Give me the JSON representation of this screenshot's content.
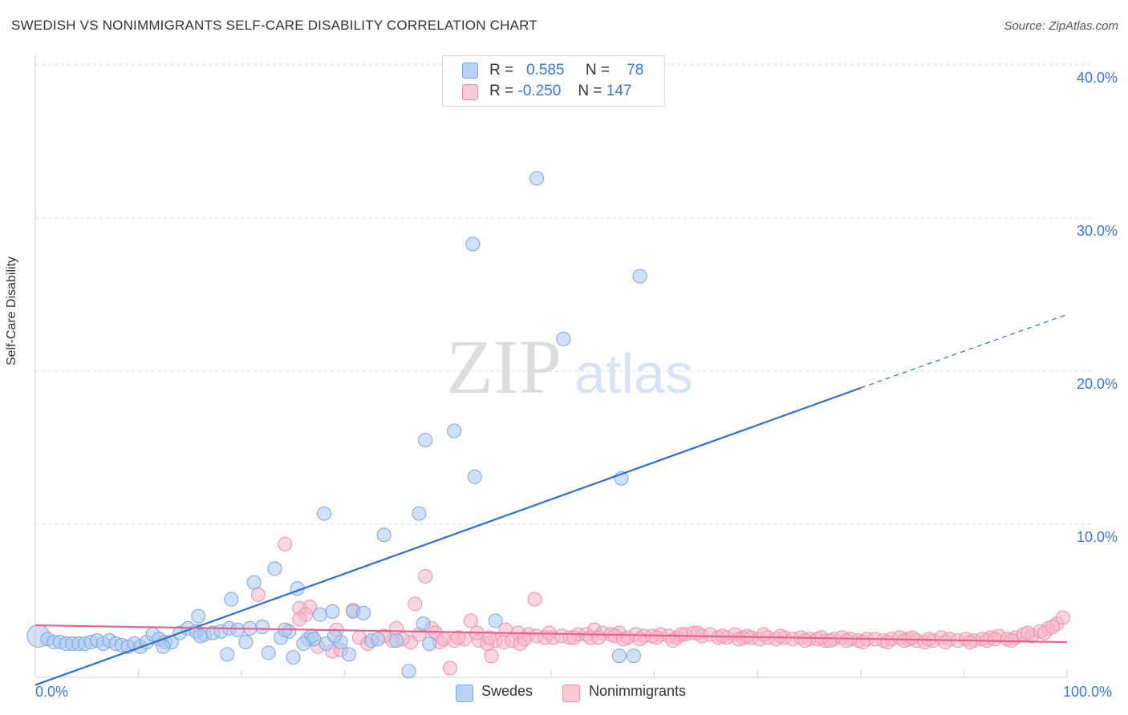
{
  "title": "SWEDISH VS NONIMMIGRANTS SELF-CARE DISABILITY CORRELATION CHART",
  "source": "Source: ZipAtlas.com",
  "watermark": {
    "zip": "ZIP",
    "atlas": "atlas"
  },
  "legend": {
    "r_label": "R =",
    "n_label": "N =",
    "rows": [
      {
        "name": "Swedes",
        "r": "0.585",
        "n": "78"
      },
      {
        "name": "Nonimmigrants",
        "r": "-0.250",
        "n": "147"
      }
    ]
  },
  "colors": {
    "swedes_fill": "#a9c8f0",
    "swedes_stroke": "#7aa6dc",
    "swedes_line": "#2f6fd0",
    "nonimm_fill": "#f5b5c8",
    "nonimm_stroke": "#ee8fab",
    "nonimm_line": "#e8608a",
    "tick_text": "#3b78d0"
  },
  "chart_data": {
    "type": "scatter",
    "title": "SWEDISH VS NONIMMIGRANTS SELF-CARE DISABILITY CORRELATION CHART",
    "xlabel": "",
    "ylabel": "Self-Care Disability",
    "xlim": [
      0,
      100
    ],
    "ylim": [
      0,
      42
    ],
    "x_tick_labels": [
      "0.0%",
      "100.0%"
    ],
    "y_ticks": [
      10,
      20,
      30,
      40
    ],
    "y_tick_labels": [
      "10.0%",
      "20.0%",
      "30.0%",
      "40.0%"
    ],
    "grid": true,
    "legend_position": "top-center",
    "series": [
      {
        "name": "Swedes",
        "r": 0.585,
        "n": 78,
        "trend": {
          "x0": 0,
          "y0": -0.5,
          "x1": 80,
          "y1": 18.9,
          "dashed_to_x": 100,
          "dashed_to_y": 23.7
        },
        "points": [
          {
            "x": 0.3,
            "y": 2.7,
            "big": true
          },
          {
            "x": 1.2,
            "y": 2.5
          },
          {
            "x": 1.8,
            "y": 2.3
          },
          {
            "x": 2.4,
            "y": 2.3
          },
          {
            "x": 3.0,
            "y": 2.2
          },
          {
            "x": 3.6,
            "y": 2.2
          },
          {
            "x": 4.2,
            "y": 2.2
          },
          {
            "x": 4.8,
            "y": 2.2
          },
          {
            "x": 5.4,
            "y": 2.3
          },
          {
            "x": 6.0,
            "y": 2.4
          },
          {
            "x": 6.6,
            "y": 2.2
          },
          {
            "x": 7.2,
            "y": 2.4
          },
          {
            "x": 7.8,
            "y": 2.2
          },
          {
            "x": 8.4,
            "y": 2.1
          },
          {
            "x": 9.0,
            "y": 2.0
          },
          {
            "x": 9.6,
            "y": 2.2
          },
          {
            "x": 10.2,
            "y": 2.0
          },
          {
            "x": 10.8,
            "y": 2.3
          },
          {
            "x": 11.4,
            "y": 2.8
          },
          {
            "x": 12.0,
            "y": 2.5
          },
          {
            "x": 12.6,
            "y": 2.3
          },
          {
            "x": 13.2,
            "y": 2.3
          },
          {
            "x": 14.0,
            "y": 2.9
          },
          {
            "x": 14.8,
            "y": 3.2
          },
          {
            "x": 15.6,
            "y": 3.0
          },
          {
            "x": 16.4,
            "y": 2.8
          },
          {
            "x": 17.2,
            "y": 2.9
          },
          {
            "x": 18.0,
            "y": 3.0
          },
          {
            "x": 18.8,
            "y": 3.2
          },
          {
            "x": 19.6,
            "y": 3.1
          },
          {
            "x": 15.8,
            "y": 4.0
          },
          {
            "x": 18.6,
            "y": 1.5
          },
          {
            "x": 19.0,
            "y": 5.1
          },
          {
            "x": 20.4,
            "y": 2.3
          },
          {
            "x": 21.2,
            "y": 6.2
          },
          {
            "x": 22.0,
            "y": 3.3
          },
          {
            "x": 22.6,
            "y": 1.6
          },
          {
            "x": 23.2,
            "y": 7.1
          },
          {
            "x": 23.8,
            "y": 2.6
          },
          {
            "x": 24.6,
            "y": 3.0
          },
          {
            "x": 25.0,
            "y": 1.3
          },
          {
            "x": 25.4,
            "y": 5.8
          },
          {
            "x": 26.4,
            "y": 2.5
          },
          {
            "x": 26.8,
            "y": 2.7
          },
          {
            "x": 27.6,
            "y": 4.1
          },
          {
            "x": 28.2,
            "y": 2.2
          },
          {
            "x": 28.8,
            "y": 4.3
          },
          {
            "x": 29.6,
            "y": 2.3
          },
          {
            "x": 30.4,
            "y": 1.5
          },
          {
            "x": 30.8,
            "y": 4.3
          },
          {
            "x": 31.8,
            "y": 4.2
          },
          {
            "x": 32.6,
            "y": 2.4
          },
          {
            "x": 28.0,
            "y": 10.7
          },
          {
            "x": 33.8,
            "y": 9.3
          },
          {
            "x": 35.0,
            "y": 2.4
          },
          {
            "x": 36.2,
            "y": 0.4
          },
          {
            "x": 37.2,
            "y": 10.7
          },
          {
            "x": 37.6,
            "y": 3.5
          },
          {
            "x": 37.8,
            "y": 15.5
          },
          {
            "x": 38.2,
            "y": 2.2
          },
          {
            "x": 40.6,
            "y": 16.1
          },
          {
            "x": 42.4,
            "y": 28.3
          },
          {
            "x": 42.6,
            "y": 13.1
          },
          {
            "x": 44.6,
            "y": 3.7
          },
          {
            "x": 48.6,
            "y": 32.6
          },
          {
            "x": 51.2,
            "y": 22.1
          },
          {
            "x": 56.8,
            "y": 13.0
          },
          {
            "x": 58.6,
            "y": 26.2
          },
          {
            "x": 56.6,
            "y": 1.4
          },
          {
            "x": 58.0,
            "y": 1.4
          },
          {
            "x": 20.8,
            "y": 3.2
          },
          {
            "x": 24.2,
            "y": 3.1
          },
          {
            "x": 27.0,
            "y": 2.5
          },
          {
            "x": 33.2,
            "y": 2.5
          },
          {
            "x": 12.4,
            "y": 2.0
          },
          {
            "x": 16.0,
            "y": 2.7
          },
          {
            "x": 26.0,
            "y": 2.2
          },
          {
            "x": 29.0,
            "y": 2.7
          }
        ]
      },
      {
        "name": "Nonimmigrants",
        "r": -0.25,
        "n": 147,
        "trend": {
          "x0": 0,
          "y0": 3.4,
          "x1": 100,
          "y1": 2.3
        },
        "points": [
          {
            "x": 24.2,
            "y": 8.7
          },
          {
            "x": 37.8,
            "y": 6.6
          },
          {
            "x": 48.4,
            "y": 5.1
          },
          {
            "x": 21.6,
            "y": 5.4
          },
          {
            "x": 36.8,
            "y": 4.8
          },
          {
            "x": 26.6,
            "y": 4.6
          },
          {
            "x": 25.6,
            "y": 4.5
          },
          {
            "x": 30.8,
            "y": 4.4
          },
          {
            "x": 26.2,
            "y": 4.1
          },
          {
            "x": 25.6,
            "y": 3.8
          },
          {
            "x": 42.2,
            "y": 3.7
          },
          {
            "x": 35.0,
            "y": 3.2
          },
          {
            "x": 29.2,
            "y": 3.1
          },
          {
            "x": 38.4,
            "y": 3.2
          },
          {
            "x": 45.6,
            "y": 3.1
          },
          {
            "x": 40.2,
            "y": 0.6
          },
          {
            "x": 44.2,
            "y": 1.4
          },
          {
            "x": 28.8,
            "y": 1.7
          },
          {
            "x": 29.6,
            "y": 1.8
          },
          {
            "x": 27.4,
            "y": 2.0
          },
          {
            "x": 31.4,
            "y": 2.6
          },
          {
            "x": 34.6,
            "y": 2.4
          },
          {
            "x": 36.4,
            "y": 2.3
          },
          {
            "x": 39.2,
            "y": 2.3
          },
          {
            "x": 40.6,
            "y": 2.4
          },
          {
            "x": 41.6,
            "y": 2.5
          },
          {
            "x": 43.0,
            "y": 2.4
          },
          {
            "x": 43.8,
            "y": 2.2
          },
          {
            "x": 44.6,
            "y": 2.4
          },
          {
            "x": 45.4,
            "y": 2.3
          },
          {
            "x": 46.2,
            "y": 2.4
          },
          {
            "x": 47.0,
            "y": 2.2
          },
          {
            "x": 47.8,
            "y": 2.8
          },
          {
            "x": 48.6,
            "y": 2.7
          },
          {
            "x": 49.4,
            "y": 2.6
          },
          {
            "x": 50.2,
            "y": 2.6
          },
          {
            "x": 51.0,
            "y": 2.7
          },
          {
            "x": 51.8,
            "y": 2.6
          },
          {
            "x": 52.6,
            "y": 2.8
          },
          {
            "x": 53.4,
            "y": 2.8
          },
          {
            "x": 54.2,
            "y": 3.1
          },
          {
            "x": 55.0,
            "y": 2.9
          },
          {
            "x": 55.8,
            "y": 2.8
          },
          {
            "x": 56.6,
            "y": 2.9
          },
          {
            "x": 57.4,
            "y": 2.6
          },
          {
            "x": 58.2,
            "y": 2.8
          },
          {
            "x": 59.0,
            "y": 2.7
          },
          {
            "x": 59.8,
            "y": 2.7
          },
          {
            "x": 60.6,
            "y": 2.8
          },
          {
            "x": 61.4,
            "y": 2.7
          },
          {
            "x": 62.2,
            "y": 2.6
          },
          {
            "x": 63.0,
            "y": 2.8
          },
          {
            "x": 63.8,
            "y": 2.9
          },
          {
            "x": 64.6,
            "y": 2.7
          },
          {
            "x": 65.4,
            "y": 2.8
          },
          {
            "x": 66.2,
            "y": 2.6
          },
          {
            "x": 67.0,
            "y": 2.6
          },
          {
            "x": 67.8,
            "y": 2.8
          },
          {
            "x": 68.6,
            "y": 2.6
          },
          {
            "x": 69.4,
            "y": 2.6
          },
          {
            "x": 70.2,
            "y": 2.5
          },
          {
            "x": 71.0,
            "y": 2.6
          },
          {
            "x": 71.8,
            "y": 2.5
          },
          {
            "x": 72.6,
            "y": 2.6
          },
          {
            "x": 73.4,
            "y": 2.5
          },
          {
            "x": 74.2,
            "y": 2.6
          },
          {
            "x": 75.0,
            "y": 2.5
          },
          {
            "x": 75.8,
            "y": 2.5
          },
          {
            "x": 76.6,
            "y": 2.4
          },
          {
            "x": 77.4,
            "y": 2.5
          },
          {
            "x": 78.2,
            "y": 2.6
          },
          {
            "x": 79.0,
            "y": 2.5
          },
          {
            "x": 79.8,
            "y": 2.4
          },
          {
            "x": 80.6,
            "y": 2.5
          },
          {
            "x": 81.4,
            "y": 2.5
          },
          {
            "x": 82.2,
            "y": 2.4
          },
          {
            "x": 83.0,
            "y": 2.5
          },
          {
            "x": 83.8,
            "y": 2.6
          },
          {
            "x": 84.6,
            "y": 2.5
          },
          {
            "x": 85.4,
            "y": 2.4
          },
          {
            "x": 86.2,
            "y": 2.3
          },
          {
            "x": 87.0,
            "y": 2.4
          },
          {
            "x": 87.8,
            "y": 2.6
          },
          {
            "x": 88.6,
            "y": 2.5
          },
          {
            "x": 89.4,
            "y": 2.4
          },
          {
            "x": 90.2,
            "y": 2.5
          },
          {
            "x": 91.0,
            "y": 2.4
          },
          {
            "x": 91.8,
            "y": 2.5
          },
          {
            "x": 92.6,
            "y": 2.6
          },
          {
            "x": 93.4,
            "y": 2.7
          },
          {
            "x": 94.2,
            "y": 2.5
          },
          {
            "x": 95.0,
            "y": 2.6
          },
          {
            "x": 95.8,
            "y": 2.8
          },
          {
            "x": 96.6,
            "y": 2.7
          },
          {
            "x": 97.4,
            "y": 3.0
          },
          {
            "x": 98.2,
            "y": 3.2
          },
          {
            "x": 99.0,
            "y": 3.5
          },
          {
            "x": 99.6,
            "y": 3.9
          },
          {
            "x": 32.2,
            "y": 2.2
          },
          {
            "x": 33.8,
            "y": 2.7
          },
          {
            "x": 37.2,
            "y": 2.8
          },
          {
            "x": 38.8,
            "y": 2.9
          },
          {
            "x": 41.0,
            "y": 2.6
          },
          {
            "x": 42.8,
            "y": 2.9
          },
          {
            "x": 44.0,
            "y": 2.6
          },
          {
            "x": 46.8,
            "y": 2.9
          },
          {
            "x": 49.8,
            "y": 2.9
          },
          {
            "x": 52.2,
            "y": 2.6
          },
          {
            "x": 53.8,
            "y": 2.6
          },
          {
            "x": 56.2,
            "y": 2.7
          },
          {
            "x": 58.6,
            "y": 2.5
          },
          {
            "x": 60.2,
            "y": 2.6
          },
          {
            "x": 62.6,
            "y": 2.8
          },
          {
            "x": 64.2,
            "y": 2.9
          },
          {
            "x": 66.6,
            "y": 2.7
          },
          {
            "x": 68.2,
            "y": 2.5
          },
          {
            "x": 70.6,
            "y": 2.8
          },
          {
            "x": 72.2,
            "y": 2.7
          },
          {
            "x": 74.6,
            "y": 2.4
          },
          {
            "x": 76.2,
            "y": 2.6
          },
          {
            "x": 78.6,
            "y": 2.4
          },
          {
            "x": 80.2,
            "y": 2.3
          },
          {
            "x": 82.6,
            "y": 2.3
          },
          {
            "x": 84.2,
            "y": 2.4
          },
          {
            "x": 86.6,
            "y": 2.5
          },
          {
            "x": 88.2,
            "y": 2.3
          },
          {
            "x": 90.6,
            "y": 2.3
          },
          {
            "x": 92.2,
            "y": 2.4
          },
          {
            "x": 94.6,
            "y": 2.4
          },
          {
            "x": 96.2,
            "y": 2.9
          },
          {
            "x": 97.8,
            "y": 2.9
          },
          {
            "x": 35.6,
            "y": 2.5
          },
          {
            "x": 39.6,
            "y": 2.5
          },
          {
            "x": 47.4,
            "y": 2.5
          },
          {
            "x": 54.6,
            "y": 2.6
          },
          {
            "x": 61.8,
            "y": 2.4
          },
          {
            "x": 69.0,
            "y": 2.7
          },
          {
            "x": 77.0,
            "y": 2.4
          },
          {
            "x": 85.0,
            "y": 2.6
          },
          {
            "x": 93.0,
            "y": 2.5
          },
          {
            "x": 98.6,
            "y": 3.3
          },
          {
            "x": 57.0,
            "y": 2.5
          }
        ]
      }
    ]
  }
}
